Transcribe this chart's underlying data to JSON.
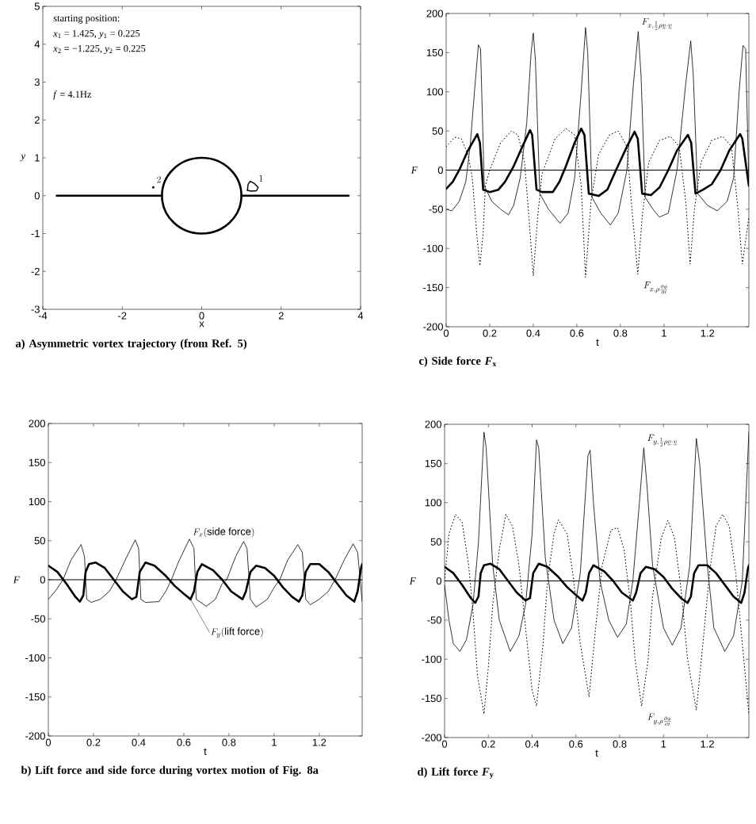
{
  "chart_data": [
    {
      "type": "line",
      "title": "a) Asymmetric vortex trajectory (from Ref. 5)",
      "xlabel": "x",
      "ylabel": "y",
      "xlim": [
        -4,
        4
      ],
      "ylim": [
        -3,
        5
      ],
      "xticks": [
        -4,
        -2,
        0,
        2,
        4
      ],
      "yticks": [
        -3,
        -2,
        -1,
        0,
        1,
        2,
        3,
        4,
        5
      ],
      "series": [
        {
          "x": [
            -3.65,
            -1
          ],
          "values": [
            0,
            0
          ],
          "color": "#000000",
          "line_style": "solid"
        },
        {
          "x": [
            1,
            3.7
          ],
          "values": [
            0,
            0
          ],
          "color": "#000000",
          "line_style": "solid"
        },
        {
          "x": [
            1.15,
            1.17,
            1.22,
            1.33,
            1.42
          ],
          "values": [
            0.14,
            0.3,
            0.38,
            0.32,
            0.22
          ],
          "color": "#000000",
          "line_style": "solid"
        },
        {
          "x": [
            1.15,
            1.25,
            1.38,
            1.42
          ],
          "values": [
            0.14,
            0.12,
            0.13,
            0.22
          ],
          "color": "#000000",
          "line_style": "solid"
        },
        {
          "type": "scatter",
          "x": [
            -1.22
          ],
          "values": [
            0.22
          ],
          "color": "#000000",
          "marker": "circle"
        }
      ],
      "annotations": [
        "starting position:",
        "*x*$_{1}$ = 1.425, *y*$_{1}$ = 0.225",
        "*x*$_{2}$ = −1.225, *y*$_{2}$ = 0.225",
        "*f* = 4.1Hz",
        {
          "text": "1",
          "x": 1.35,
          "y": 0.33
        },
        {
          "text": "2",
          "x": -1.22,
          "y": 0.3
        }
      ]
    },
    {
      "type": "line",
      "title": "c) Side force *F*$_{x}$",
      "xlabel": "t",
      "ylabel": "F",
      "xlim": [
        0,
        1.39
      ],
      "ylim": [
        -200,
        200
      ],
      "xticks": [
        0,
        0.2,
        0.4,
        0.6,
        0.8,
        1,
        1.2
      ],
      "yticks": [
        -200,
        -150,
        -100,
        -50,
        0,
        50,
        100,
        150,
        200
      ],
      "series": [
        {
          "x": [
            0,
            0.026,
            0.06,
            0.09,
            0.11,
            0.13,
            0.148,
            0.158,
            0.175,
            0.21,
            0.25,
            0.286,
            0.31,
            0.34,
            0.37,
            0.39,
            0.4,
            0.41,
            0.43,
            0.47,
            0.523,
            0.56,
            0.59,
            0.62,
            0.64,
            0.65,
            0.67,
            0.71,
            0.754,
            0.79,
            0.83,
            0.86,
            0.882,
            0.895,
            0.914,
            0.95,
            0.979,
            1.02,
            1.06,
            1.1,
            1.123,
            1.135,
            1.155,
            1.2,
            1.245,
            1.29,
            1.32,
            1.345,
            1.363,
            1.375,
            1.39
          ],
          "values": [
            -50,
            -52,
            -40,
            -15,
            30,
            100,
            160,
            155,
            -20,
            -40,
            -50,
            -57,
            -45,
            -10,
            60,
            150,
            175,
            140,
            -30,
            -50,
            -68,
            -55,
            -10,
            100,
            182,
            150,
            -35,
            -55,
            -70,
            -55,
            0,
            110,
            177,
            120,
            -35,
            -50,
            -60,
            -55,
            0,
            110,
            165,
            120,
            -30,
            -45,
            -52,
            -40,
            -10,
            100,
            159,
            155,
            -20
          ],
          "color": "#000000",
          "line_style": "solid"
        },
        {
          "x": [
            0,
            0.03,
            0.06,
            0.1,
            0.143,
            0.155,
            0.17,
            0.2,
            0.24,
            0.27,
            0.31,
            0.35,
            0.385,
            0.395,
            0.415,
            0.44,
            0.49,
            0.52,
            0.55,
            0.59,
            0.62,
            0.635,
            0.655,
            0.7,
            0.74,
            0.78,
            0.83,
            0.865,
            0.88,
            0.9,
            0.94,
            0.98,
            1.02,
            1.06,
            1.11,
            1.125,
            1.145,
            1.18,
            1.22,
            1.26,
            1.3,
            1.35,
            1.36,
            1.39
          ],
          "values": [
            -24,
            -15,
            0,
            25,
            46,
            35,
            -25,
            -28,
            -25,
            -15,
            5,
            30,
            51,
            45,
            -25,
            -28,
            -28,
            -15,
            5,
            35,
            53,
            45,
            -30,
            -33,
            -25,
            0,
            30,
            49,
            40,
            -30,
            -32,
            -22,
            0,
            25,
            45,
            35,
            -30,
            -25,
            -18,
            0,
            25,
            46,
            40,
            -20
          ],
          "color": "#000000",
          "line_style": "solid"
        },
        {
          "x": [
            0,
            0.04,
            0.07,
            0.1,
            0.12,
            0.14,
            0.155,
            0.17,
            0.18,
            0.2,
            0.25,
            0.3,
            0.33,
            0.36,
            0.38,
            0.4,
            0.42,
            0.44,
            0.5,
            0.55,
            0.59,
            0.62,
            0.64,
            0.665,
            0.7,
            0.75,
            0.79,
            0.83,
            0.85,
            0.88,
            0.9,
            0.93,
            0.98,
            1.03,
            1.07,
            1.1,
            1.12,
            1.14,
            1.17,
            1.22,
            1.27,
            1.31,
            1.34,
            1.36,
            1.39
          ],
          "values": [
            30,
            42,
            40,
            20,
            -10,
            -80,
            -122,
            -80,
            -20,
            0,
            35,
            50,
            45,
            10,
            -60,
            -135,
            -60,
            -5,
            40,
            53,
            45,
            -20,
            -137,
            -40,
            20,
            45,
            50,
            30,
            -40,
            -133,
            -60,
            10,
            38,
            43,
            30,
            -40,
            -120,
            -50,
            10,
            38,
            43,
            30,
            -50,
            -120,
            -60
          ],
          "color": "#000000",
          "line_style": "dotted"
        }
      ],
      "ref_lines": [
        {
          "axis": "y",
          "value": 0,
          "color": "#000000"
        }
      ],
      "annotations": [
        {
          "text": "F_{x,\\frac{1}{2}\\rho\\underline{v}\\cdot\\underline{v}}",
          "x": 0.882,
          "y": 177
        },
        {
          "text": "F_{x,\\rho\\frac{\\partial\\phi}{\\partial t}}",
          "x": 0.88,
          "y": -133
        }
      ]
    },
    {
      "type": "line",
      "title": "b) Lift force and side force during vortex motion of Fig. 8a",
      "xlabel": "t",
      "ylabel": "F",
      "xlim": [
        0,
        1.39
      ],
      "ylim": [
        -200,
        200
      ],
      "xticks": [
        0,
        0.2,
        0.4,
        0.6,
        0.8,
        1,
        1.2
      ],
      "yticks": [
        -200,
        -150,
        -100,
        -50,
        0,
        50,
        100,
        150,
        200
      ],
      "series": [
        {
          "x": [
            0,
            0.03,
            0.065,
            0.1,
            0.145,
            0.16,
            0.17,
            0.19,
            0.23,
            0.27,
            0.3,
            0.34,
            0.385,
            0.4,
            0.41,
            0.43,
            0.49,
            0.52,
            0.545,
            0.58,
            0.625,
            0.645,
            0.655,
            0.7,
            0.74,
            0.77,
            0.79,
            0.83,
            0.865,
            0.88,
            0.895,
            0.92,
            0.97,
            1.0,
            1.025,
            1.06,
            1.105,
            1.125,
            1.14,
            1.16,
            1.2,
            1.24,
            1.27,
            1.31,
            1.35,
            1.37,
            1.39
          ],
          "values": [
            -25,
            -15,
            0,
            25,
            45,
            30,
            -25,
            -29,
            -25,
            -15,
            0,
            25,
            51,
            40,
            -25,
            -29,
            -28,
            -15,
            0,
            25,
            52,
            40,
            -25,
            -34,
            -25,
            -5,
            0,
            30,
            49,
            40,
            -25,
            -35,
            -25,
            -10,
            0,
            25,
            45,
            35,
            -25,
            -32,
            -25,
            -15,
            0,
            25,
            46,
            35,
            -28
          ],
          "color": "#000000",
          "line_style": "solid"
        },
        {
          "x": [
            0,
            0.04,
            0.08,
            0.12,
            0.14,
            0.155,
            0.165,
            0.18,
            0.21,
            0.25,
            0.29,
            0.33,
            0.37,
            0.39,
            0.405,
            0.43,
            0.47,
            0.52,
            0.56,
            0.6,
            0.63,
            0.645,
            0.66,
            0.68,
            0.73,
            0.77,
            0.81,
            0.86,
            0.875,
            0.895,
            0.92,
            0.96,
            1.0,
            1.04,
            1.08,
            1.11,
            1.125,
            1.14,
            1.16,
            1.2,
            1.24,
            1.28,
            1.32,
            1.355,
            1.37,
            1.385,
            1.39
          ],
          "values": [
            18,
            10,
            -5,
            -22,
            -28,
            -20,
            10,
            20,
            22,
            15,
            0,
            -15,
            -25,
            -22,
            10,
            22,
            18,
            5,
            -8,
            -18,
            -25,
            -15,
            10,
            20,
            12,
            0,
            -15,
            -25,
            -15,
            10,
            18,
            15,
            5,
            -10,
            -22,
            -28,
            -20,
            10,
            20,
            20,
            10,
            -5,
            -20,
            -28,
            -15,
            15,
            20
          ],
          "color": "#000000",
          "line_style": "solid"
        }
      ],
      "ref_lines": [
        {
          "axis": "y",
          "value": 0,
          "color": "#000000"
        }
      ],
      "annotations": [
        {
          "text": "F_{x}\\mathrm{(side\\ force)}",
          "x": 0.625,
          "y": 52
        },
        {
          "text": "F_{y}\\mathrm{(lift\\ force)}",
          "x": 0.63,
          "y": -25
        }
      ]
    },
    {
      "type": "line",
      "title": "d) Lift force *F*$_{y}$",
      "xlabel": "t",
      "ylabel": "F",
      "xlim": [
        0,
        1.39
      ],
      "ylim": [
        -200,
        200
      ],
      "xticks": [
        0,
        0.2,
        0.4,
        0.6,
        0.8,
        1,
        1.2
      ],
      "yticks": [
        -200,
        -150,
        -100,
        -50,
        0,
        50,
        100,
        150,
        200
      ],
      "series": [
        {
          "x": [
            0,
            0.02,
            0.04,
            0.07,
            0.1,
            0.13,
            0.155,
            0.18,
            0.19,
            0.22,
            0.25,
            0.3,
            0.34,
            0.37,
            0.4,
            0.42,
            0.43,
            0.46,
            0.5,
            0.54,
            0.58,
            0.62,
            0.655,
            0.665,
            0.68,
            0.71,
            0.75,
            0.79,
            0.83,
            0.86,
            0.89,
            0.91,
            0.925,
            0.95,
            1.0,
            1.04,
            1.08,
            1.12,
            1.15,
            1.165,
            1.2,
            1.23,
            1.28,
            1.32,
            1.36,
            1.39
          ],
          "values": [
            -5,
            -50,
            -80,
            -90,
            -75,
            -30,
            50,
            190,
            170,
            20,
            -50,
            -90,
            -70,
            -30,
            60,
            180,
            170,
            30,
            -50,
            -80,
            -60,
            10,
            160,
            167,
            100,
            0,
            -50,
            -72,
            -55,
            0,
            100,
            170,
            120,
            20,
            -60,
            -82,
            -60,
            20,
            182,
            150,
            20,
            -60,
            -90,
            -70,
            0,
            190
          ],
          "color": "#000000",
          "line_style": "solid"
        },
        {
          "x": [
            0,
            0.04,
            0.08,
            0.12,
            0.14,
            0.155,
            0.165,
            0.18,
            0.21,
            0.25,
            0.29,
            0.33,
            0.37,
            0.39,
            0.405,
            0.43,
            0.47,
            0.52,
            0.56,
            0.6,
            0.63,
            0.645,
            0.66,
            0.68,
            0.73,
            0.77,
            0.81,
            0.86,
            0.875,
            0.895,
            0.92,
            0.96,
            1.0,
            1.04,
            1.08,
            1.11,
            1.125,
            1.14,
            1.16,
            1.2,
            1.24,
            1.28,
            1.32,
            1.355,
            1.37,
            1.385,
            1.39
          ],
          "values": [
            18,
            10,
            -5,
            -22,
            -28,
            -20,
            10,
            20,
            22,
            15,
            0,
            -15,
            -25,
            -22,
            10,
            22,
            18,
            5,
            -8,
            -18,
            -25,
            -15,
            10,
            20,
            12,
            0,
            -15,
            -25,
            -15,
            10,
            18,
            15,
            5,
            -10,
            -22,
            -28,
            -20,
            10,
            20,
            20,
            10,
            -5,
            -20,
            -28,
            -15,
            15,
            20
          ],
          "color": "#000000",
          "line_style": "solid"
        },
        {
          "x": [
            0,
            0.02,
            0.05,
            0.08,
            0.11,
            0.13,
            0.15,
            0.18,
            0.2,
            0.22,
            0.25,
            0.28,
            0.31,
            0.34,
            0.37,
            0.4,
            0.42,
            0.45,
            0.47,
            0.5,
            0.52,
            0.56,
            0.59,
            0.62,
            0.66,
            0.69,
            0.72,
            0.76,
            0.79,
            0.82,
            0.85,
            0.87,
            0.9,
            0.93,
            0.95,
            0.99,
            1.02,
            1.05,
            1.08,
            1.11,
            1.15,
            1.18,
            1.21,
            1.24,
            1.27,
            1.3,
            1.33,
            1.36,
            1.39
          ],
          "values": [
            0,
            60,
            85,
            75,
            20,
            -40,
            -120,
            -170,
            -110,
            -30,
            40,
            85,
            70,
            20,
            -60,
            -140,
            -160,
            -80,
            0,
            60,
            78,
            60,
            0,
            -80,
            -148,
            -60,
            20,
            65,
            68,
            40,
            -30,
            -100,
            -160,
            -100,
            -20,
            55,
            77,
            55,
            -10,
            -100,
            -165,
            -80,
            10,
            70,
            85,
            70,
            10,
            -80,
            -170
          ],
          "color": "#000000",
          "line_style": "dotted"
        }
      ],
      "ref_lines": [
        {
          "axis": "y",
          "value": 0,
          "color": "#000000"
        }
      ],
      "annotations": [
        {
          "text": "F_{y,\\frac{1}{2}\\rho\\underline{v}\\cdot\\underline{v}}",
          "x": 0.91,
          "y": 170
        },
        {
          "text": "F_{y,\\rho\\frac{\\partial\\phi}{\\partial t}}",
          "x": 0.9,
          "y": -160
        }
      ]
    }
  ]
}
